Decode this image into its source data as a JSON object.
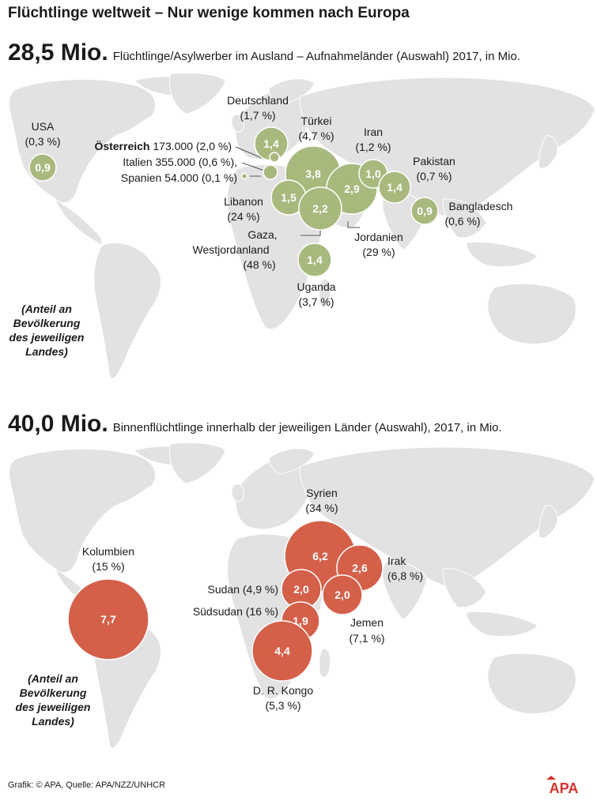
{
  "title": "Flüchtlinge weltweit – Nur wenige kommen nach Europa",
  "section1": {
    "total": "28,5 Mio.",
    "subtitle": "Flüchtlinge/Asylwerber im Ausland – Aufnahmeländer (Auswahl) 2017, in Mio.",
    "bubble_color": "#a8b97e",
    "countries": [
      {
        "name": "USA",
        "share": "(0,3 %)",
        "value": "0,9",
        "v": 0.9
      },
      {
        "name": "Deutschland",
        "share": "(1,7 %)",
        "value": "1,4",
        "v": 1.4
      },
      {
        "name": "Türkei",
        "share": "(4,7 %)",
        "value": "3,8",
        "v": 3.8
      },
      {
        "name": "Iran",
        "share": "(1,2 %)",
        "value": "1,0",
        "v": 1.0
      },
      {
        "name": "Pakistan",
        "share": "(0,7 %)",
        "value": "1,4",
        "v": 1.4
      },
      {
        "name": "Bangladesch",
        "share": "(0,6 %)",
        "value": "0,9",
        "v": 0.9
      },
      {
        "name": "Libanon",
        "share": "(24 %)",
        "value": "1,5",
        "v": 1.5
      },
      {
        "name": "Jordanien",
        "share": "(29 %)",
        "value": "2,9",
        "v": 2.9
      },
      {
        "name": "Gaza, Westjordanland",
        "name1": "Gaza,",
        "name2": "Westjordanland",
        "share": "(48 %)",
        "value": "2,2",
        "v": 2.2
      },
      {
        "name": "Uganda",
        "share": "(3,7 %)",
        "value": "1,4",
        "v": 1.4
      }
    ],
    "small": [
      {
        "name": "Österreich",
        "text": "173.000 (2,0 %)"
      },
      {
        "name": "Italien",
        "text": "Italien 355.000 (0,6 %),"
      },
      {
        "name": "Spanien",
        "text": "Spanien 54.000 (0,1 %)"
      }
    ],
    "note": [
      "(Anteil an",
      "Bevölkerung",
      "des jeweiligen",
      "Landes)"
    ]
  },
  "section2": {
    "total": "40,0 Mio.",
    "subtitle": "Binnenflüchtlinge innerhalb der jeweiligen Länder (Auswahl), 2017, in Mio.",
    "bubble_color": "#d4604a",
    "countries": [
      {
        "name": "Kolumbien",
        "share": "(15 %)",
        "value": "7,7",
        "v": 7.7
      },
      {
        "name": "Syrien",
        "share": "(34 %)",
        "value": "6,2",
        "v": 6.2
      },
      {
        "name": "Irak",
        "share": "(6,8 %)",
        "value": "2,6",
        "v": 2.6
      },
      {
        "name": "Sudan",
        "share": "(4,9 %)",
        "value": "2,0",
        "v": 2.0
      },
      {
        "name": "Jemen",
        "share": "(7,1 %)",
        "value": "2,0",
        "v": 2.0
      },
      {
        "name": "Südsudan",
        "share": "(16 %)",
        "value": "1,9",
        "v": 1.9
      },
      {
        "name": "D. R. Kongo",
        "share": "(5,3 %)",
        "value": "4,4",
        "v": 4.4
      }
    ],
    "note": [
      "(Anteil an",
      "Bevölkerung",
      "des jeweiligen",
      "Landes)"
    ]
  },
  "footer": "Grafik: © APA, Quelle: APA/NZZ/UNHCR",
  "logo": "APA",
  "map_color": "#e2e2e2",
  "border_color": "#ffffff"
}
